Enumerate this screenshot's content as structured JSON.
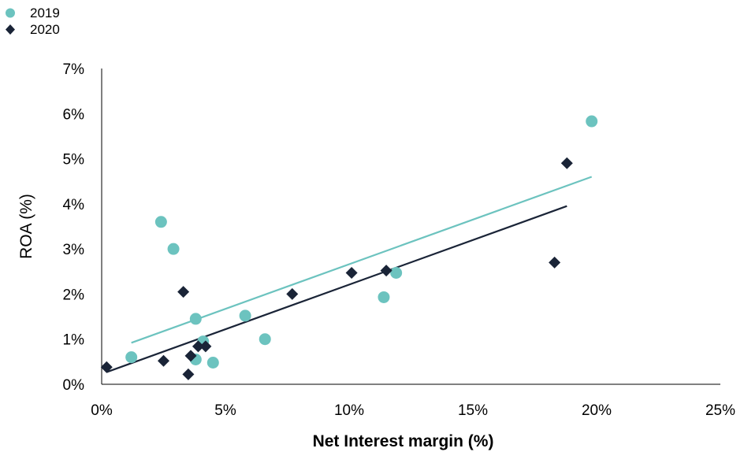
{
  "chart_data": {
    "type": "scatter",
    "title": "",
    "xlabel": "Net Interest margin (%)",
    "ylabel": "ROA (%)",
    "xlim": [
      0,
      25
    ],
    "ylim": [
      0,
      7
    ],
    "x_ticks": [
      "0%",
      "5%",
      "10%",
      "15%",
      "20%",
      "25%"
    ],
    "y_ticks": [
      "0%",
      "1%",
      "2%",
      "3%",
      "4%",
      "5%",
      "6%",
      "7%"
    ],
    "grid": false,
    "legend_position": "top-left",
    "series": [
      {
        "name": "2019",
        "color": "#6cc3bf",
        "marker": "circle",
        "points": [
          [
            1.2,
            0.6
          ],
          [
            2.4,
            3.6
          ],
          [
            2.9,
            3.0
          ],
          [
            3.8,
            1.45
          ],
          [
            3.8,
            0.55
          ],
          [
            4.1,
            0.95
          ],
          [
            4.5,
            0.48
          ],
          [
            5.8,
            1.52
          ],
          [
            6.6,
            1.0
          ],
          [
            11.4,
            1.93
          ],
          [
            11.9,
            2.47
          ],
          [
            19.8,
            5.83
          ]
        ],
        "trendline": {
          "x": [
            1.2,
            19.8
          ],
          "y": [
            0.92,
            4.6
          ]
        }
      },
      {
        "name": "2020",
        "color": "#1a2437",
        "marker": "diamond",
        "points": [
          [
            0.2,
            0.38
          ],
          [
            2.5,
            0.52
          ],
          [
            3.3,
            2.05
          ],
          [
            3.5,
            0.22
          ],
          [
            3.6,
            0.63
          ],
          [
            3.9,
            0.84
          ],
          [
            4.2,
            0.84
          ],
          [
            7.7,
            2.0
          ],
          [
            10.1,
            2.47
          ],
          [
            11.5,
            2.52
          ],
          [
            18.3,
            2.7
          ],
          [
            18.8,
            4.9
          ]
        ],
        "trendline": {
          "x": [
            0.2,
            18.8
          ],
          "y": [
            0.27,
            3.95
          ]
        }
      }
    ]
  }
}
